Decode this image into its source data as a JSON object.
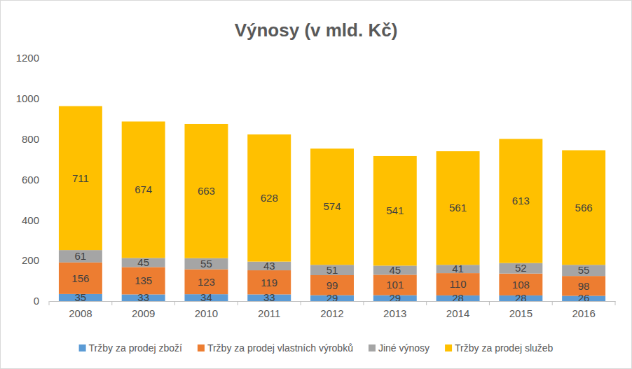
{
  "chart_data": {
    "type": "bar",
    "title": "Výnosy (v mld. Kč)",
    "stacked": true,
    "data_labels": true,
    "grid": false,
    "legend": "bottom",
    "categories": [
      "2008",
      "2009",
      "2010",
      "2011",
      "2012",
      "2013",
      "2014",
      "2015",
      "2016"
    ],
    "ylim": [
      0,
      1200
    ],
    "yticks": [
      0,
      200,
      400,
      600,
      800,
      1000,
      1200
    ],
    "series": [
      {
        "name": "Tržby za prodej zboží",
        "color": "#5b9bd5",
        "values": [
          35,
          33,
          34,
          33,
          29,
          29,
          28,
          28,
          26
        ]
      },
      {
        "name": "Tržby za prodej vlastních výrobků",
        "color": "#ed7d31",
        "values": [
          156,
          135,
          123,
          119,
          99,
          101,
          110,
          108,
          98
        ]
      },
      {
        "name": "Jiné výnosy",
        "color": "#a5a5a5",
        "values": [
          61,
          45,
          55,
          43,
          51,
          45,
          41,
          52,
          55
        ]
      },
      {
        "name": "Tržby za prodej služeb",
        "color": "#ffc000",
        "values": [
          711,
          674,
          663,
          628,
          574,
          541,
          561,
          613,
          566
        ]
      }
    ]
  }
}
